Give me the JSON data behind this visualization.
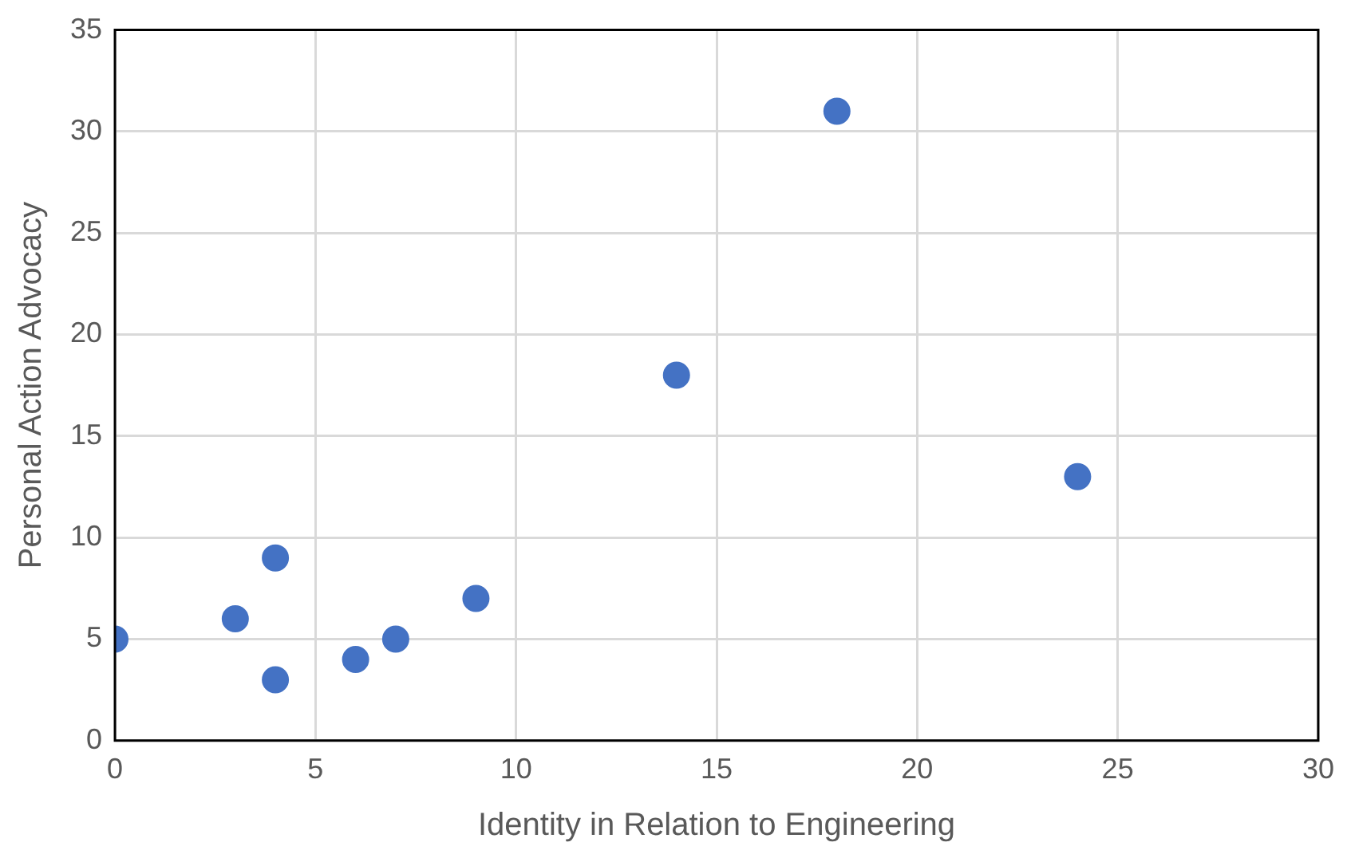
{
  "chart_data": {
    "type": "scatter",
    "xlabel": "Identity in Relation to Engineering",
    "ylabel": "Personal Action Advocacy",
    "x": [
      0,
      3,
      4,
      4,
      6,
      7,
      9,
      14,
      18,
      24
    ],
    "values": [
      5,
      6,
      9,
      3,
      4,
      5,
      7,
      18,
      31,
      13
    ],
    "color": "#4472c4",
    "marker": "circle",
    "xlim": [
      0,
      30
    ],
    "xticks": [
      0,
      5,
      10,
      15,
      20,
      25,
      30
    ],
    "ylim": [
      0,
      35
    ],
    "yticks": [
      0,
      5,
      10,
      15,
      20,
      25,
      30,
      35
    ],
    "grid": true
  }
}
